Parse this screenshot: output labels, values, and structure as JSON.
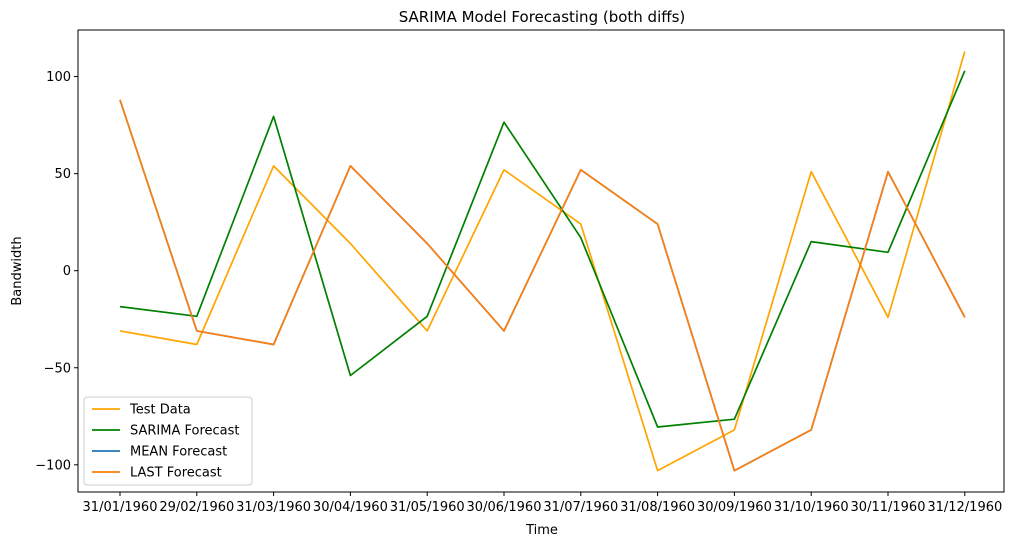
{
  "chart_data": {
    "type": "line",
    "title": "SARIMA Model Forecasting (both diffs)",
    "xlabel": "Time",
    "ylabel": "Bandwidth",
    "categories": [
      "31/01/1960",
      "29/02/1960",
      "31/03/1960",
      "30/04/1960",
      "31/05/1960",
      "30/06/1960",
      "31/07/1960",
      "31/08/1960",
      "30/09/1960",
      "31/10/1960",
      "30/11/1960",
      "31/12/1960"
    ],
    "ylim": [
      -114,
      124
    ],
    "yticks": [
      -100,
      -50,
      0,
      50,
      100
    ],
    "ytick_labels": [
      "−100",
      "−50",
      "0",
      "50",
      "100"
    ],
    "grid": false,
    "legend_position": "lower-left",
    "series": [
      {
        "name": "Test Data",
        "color": "#ffa500",
        "values": [
          -31,
          -38,
          54,
          14,
          -31,
          52,
          24,
          -103,
          -82,
          51,
          -24,
          113
        ]
      },
      {
        "name": "SARIMA Forecast",
        "color": "#008000",
        "values": [
          -18.5,
          -23.5,
          79.5,
          -54,
          -23.5,
          76.5,
          17,
          -80.5,
          -76.5,
          15,
          9.5,
          103
        ]
      },
      {
        "name": "MEAN Forecast",
        "color": "#1f77b4",
        "values": [
          88,
          -31,
          -38,
          54,
          14,
          -31,
          52,
          24,
          -103,
          -82,
          51,
          -24
        ]
      },
      {
        "name": "LAST Forecast",
        "color": "#ff7f0e",
        "values": [
          88,
          -31,
          -38,
          54,
          14,
          -31,
          52,
          24,
          -103,
          -82,
          51,
          -24
        ]
      }
    ]
  }
}
